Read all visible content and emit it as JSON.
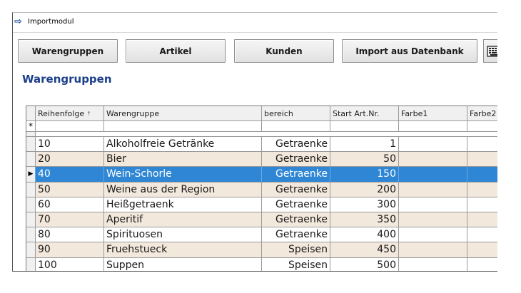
{
  "window": {
    "title": "Importmodul",
    "icon": "arrow-right-icon"
  },
  "toolbar": {
    "buttons": [
      {
        "label": "Warengruppen"
      },
      {
        "label": "Artikel"
      },
      {
        "label": "Kunden"
      },
      {
        "label": "Import aus Datenbank"
      }
    ],
    "keyboard_icon": "keyboard-icon"
  },
  "section": {
    "title": "Warengruppen"
  },
  "grid": {
    "columns": [
      "Reihenfolge",
      "Warengruppe",
      "bereich",
      "Start Art.Nr.",
      "Farbe1",
      "Farbe2"
    ],
    "sort_indicator": "↑",
    "new_row_marker": "*",
    "current_row_marker": "▶",
    "rows": [
      {
        "reihenfolge": "10",
        "warengruppe": "Alkoholfreie Getränke",
        "bereich": "Getraenke",
        "start": "1",
        "farbe1": "",
        "farbe2": ""
      },
      {
        "reihenfolge": "20",
        "warengruppe": "Bier",
        "bereich": "Getraenke",
        "start": "50",
        "farbe1": "",
        "farbe2": ""
      },
      {
        "reihenfolge": "40",
        "warengruppe": "Wein-Schorle",
        "bereich": "Getraenke",
        "start": "150",
        "farbe1": "",
        "farbe2": "",
        "selected": true
      },
      {
        "reihenfolge": "50",
        "warengruppe": "Weine aus der Region",
        "bereich": "Getraenke",
        "start": "200",
        "farbe1": "",
        "farbe2": ""
      },
      {
        "reihenfolge": "60",
        "warengruppe": "Heißgetraenk",
        "bereich": "Getraenke",
        "start": "300",
        "farbe1": "",
        "farbe2": ""
      },
      {
        "reihenfolge": "70",
        "warengruppe": "Aperitif",
        "bereich": "Getraenke",
        "start": "350",
        "farbe1": "",
        "farbe2": ""
      },
      {
        "reihenfolge": "80",
        "warengruppe": "Spirituosen",
        "bereich": "Getraenke",
        "start": "400",
        "farbe1": "",
        "farbe2": ""
      },
      {
        "reihenfolge": "90",
        "warengruppe": "Fruehstueck",
        "bereich": "Speisen",
        "start": "450",
        "farbe1": "",
        "farbe2": ""
      },
      {
        "reihenfolge": "100",
        "warengruppe": "Suppen",
        "bereich": "Speisen",
        "start": "500",
        "farbe1": "",
        "farbe2": ""
      }
    ]
  },
  "colors": {
    "selected_row": "#2e86d4",
    "alt_row": "#f3e8dc",
    "section_title": "#1c3f8a"
  }
}
